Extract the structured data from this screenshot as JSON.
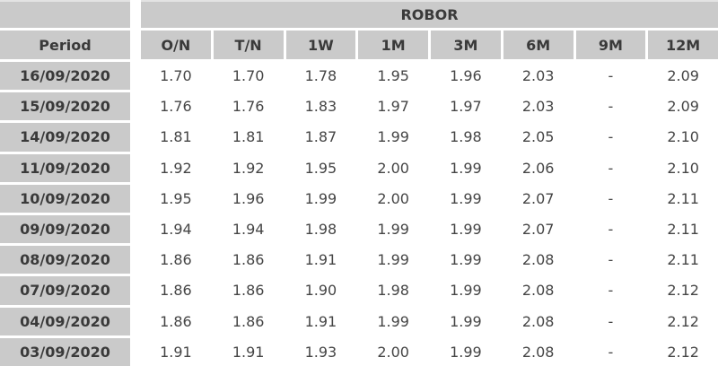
{
  "chart_data": {
    "type": "table",
    "title": "ROBOR",
    "period_label": "Period",
    "columns": [
      "O/N",
      "T/N",
      "1W",
      "1M",
      "3M",
      "6M",
      "9M",
      "12M"
    ],
    "rows": [
      {
        "period": "16/09/2020",
        "values": [
          "1.70",
          "1.70",
          "1.78",
          "1.95",
          "1.96",
          "2.03",
          "-",
          "2.09"
        ]
      },
      {
        "period": "15/09/2020",
        "values": [
          "1.76",
          "1.76",
          "1.83",
          "1.97",
          "1.97",
          "2.03",
          "-",
          "2.09"
        ]
      },
      {
        "period": "14/09/2020",
        "values": [
          "1.81",
          "1.81",
          "1.87",
          "1.99",
          "1.98",
          "2.05",
          "-",
          "2.10"
        ]
      },
      {
        "period": "11/09/2020",
        "values": [
          "1.92",
          "1.92",
          "1.95",
          "2.00",
          "1.99",
          "2.06",
          "-",
          "2.10"
        ]
      },
      {
        "period": "10/09/2020",
        "values": [
          "1.95",
          "1.96",
          "1.99",
          "2.00",
          "1.99",
          "2.07",
          "-",
          "2.11"
        ]
      },
      {
        "period": "09/09/2020",
        "values": [
          "1.94",
          "1.94",
          "1.98",
          "1.99",
          "1.99",
          "2.07",
          "-",
          "2.11"
        ]
      },
      {
        "period": "08/09/2020",
        "values": [
          "1.86",
          "1.86",
          "1.91",
          "1.99",
          "1.99",
          "2.08",
          "-",
          "2.11"
        ]
      },
      {
        "period": "07/09/2020",
        "values": [
          "1.86",
          "1.86",
          "1.90",
          "1.98",
          "1.99",
          "2.08",
          "-",
          "2.12"
        ]
      },
      {
        "period": "04/09/2020",
        "values": [
          "1.86",
          "1.86",
          "1.91",
          "1.99",
          "1.99",
          "2.08",
          "-",
          "2.12"
        ]
      },
      {
        "period": "03/09/2020",
        "values": [
          "1.91",
          "1.91",
          "1.93",
          "2.00",
          "1.99",
          "2.08",
          "-",
          "2.12"
        ]
      }
    ],
    "layout": {
      "grid": "off",
      "missing_value_marker": "-"
    }
  },
  "colors": {
    "header_bg": "#cacaca",
    "header_text": "#3a3a3a",
    "value_text": "#454545",
    "background": "#ffffff"
  }
}
